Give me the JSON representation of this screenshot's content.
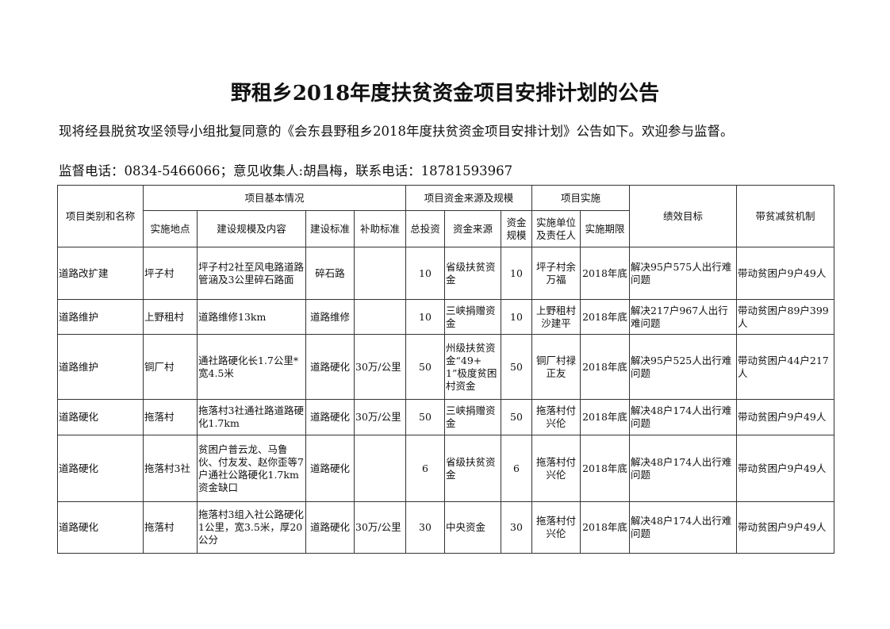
{
  "title": "野租乡2018年度扶贫资金项目安排计划的公告",
  "intro": "现将经县脱贫攻坚领导小组批复同意的《会东县野租乡2018年度扶贫资金项目安排计划》公告如下。欢迎参与监督。",
  "contact": "监督电话：0834-5466066；意见收集人:胡昌梅，联系电话：18781593967",
  "table": {
    "header": {
      "category": "项目类别和名称",
      "basic_group": "项目基本情况",
      "funds_group": "项目资金来源及规模",
      "impl_group": "项目实施",
      "goal": "绩效目标",
      "mechanism": "带贫减贫机制",
      "location": "实施地点",
      "content": "建设规模及内容",
      "standard": "建设标准",
      "subsidy": "补助标准",
      "total": "总投资",
      "source": "资金来源",
      "scale": "资金规模",
      "unit": "实施单位及责任人",
      "period": "实施期限"
    },
    "rows": [
      {
        "category": "道路改扩建",
        "location": "坪子村",
        "content": "坪子村2社至风电路道路管涵及3公里碎石路面",
        "standard": "碎石路",
        "subsidy": "",
        "total": "10",
        "source": "省级扶贫资金",
        "scale": "10",
        "unit": "坪子村余万福",
        "period": "2018年底",
        "goal": "解决95户575人出行难问题",
        "mechanism": "带动贫困户9户49人"
      },
      {
        "category": "道路维护",
        "location": "上野租村",
        "content": "道路维修13km",
        "standard": "道路维修",
        "subsidy": "",
        "total": "10",
        "source": "三峡捐赠资金",
        "scale": "10",
        "unit": "上野租村沙建平",
        "period": "2018年底",
        "goal": "解决217户967人出行难问题",
        "mechanism": "带动贫困户89户399人"
      },
      {
        "category": "道路维护",
        "location": "铜厂村",
        "content": "通社路硬化长1.7公里*宽4.5米",
        "standard": "道路硬化",
        "subsidy": "30万/公里",
        "total": "50",
        "source": "州级扶贫资金“49+1”极度贫困村资金",
        "scale": "50",
        "unit": "铜厂村禄正友",
        "period": "2018年底",
        "goal": "解决95户525人出行难问题",
        "mechanism": "带动贫困户44户217人"
      },
      {
        "category": "道路硬化",
        "location": "拖落村",
        "content": "拖落村3社通社路道路硬化1.7km",
        "standard": "道路硬化",
        "subsidy": "30万/公里",
        "total": "50",
        "source": "三峡捐赠资金",
        "scale": "50",
        "unit": "拖落村付兴伦",
        "period": "2018年底",
        "goal": "解决48户174人出行难问题",
        "mechanism": "带动贫困户9户49人"
      },
      {
        "category": "道路硬化",
        "location": "拖落村3社",
        "content": "贫困户普云龙、马鲁伙、付友发、赵你歪等7户通社公路硬化1.7km资金缺口",
        "standard": "道路硬化",
        "subsidy": "",
        "total": "6",
        "source": "省级扶贫资金",
        "scale": "6",
        "unit": "拖落村付兴伦",
        "period": "2018年底",
        "goal": "解决48户174人出行难问题",
        "mechanism": "带动贫困户9户49人"
      },
      {
        "category": "道路硬化",
        "location": "拖落村",
        "content": "拖落村3组入社公路硬化1公里，宽3.5米，厚20公分",
        "standard": "道路硬化",
        "subsidy": "30万/公里",
        "total": "30",
        "source": "中央资金",
        "scale": "30",
        "unit": "拖落村付兴伦",
        "period": "2018年底",
        "goal": "解决48户174人出行难问题",
        "mechanism": "带动贫困户9户49人"
      }
    ]
  }
}
